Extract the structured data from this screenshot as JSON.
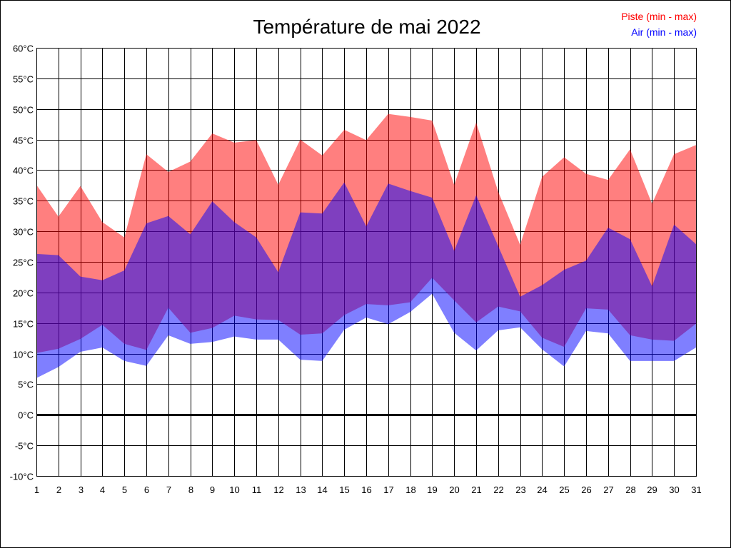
{
  "chart_data": {
    "type": "area",
    "title": "Température de mai 2022",
    "xlabel": "",
    "ylabel": "",
    "x": [
      1,
      2,
      3,
      4,
      5,
      6,
      7,
      8,
      9,
      10,
      11,
      12,
      13,
      14,
      15,
      16,
      17,
      18,
      19,
      20,
      21,
      22,
      23,
      24,
      25,
      26,
      27,
      28,
      29,
      30,
      31
    ],
    "xlim": [
      1,
      31
    ],
    "ylim": [
      -10,
      60
    ],
    "y_ticks": [
      -10,
      -5,
      0,
      5,
      10,
      15,
      20,
      25,
      30,
      35,
      40,
      45,
      50,
      55,
      60
    ],
    "y_tick_unit": "°C",
    "grid": true,
    "legend_position": "top-right",
    "series": [
      {
        "name": "Piste (min - max)",
        "color": "#ff0000",
        "min": [
          10.1,
          10.8,
          12.4,
          14.7,
          11.6,
          10.6,
          17.5,
          13.4,
          14.2,
          16.2,
          15.6,
          15.5,
          13.1,
          13.3,
          16.3,
          18.1,
          17.9,
          18.4,
          22.4,
          18.7,
          15.1,
          17.7,
          16.9,
          12.6,
          11.1,
          17.4,
          17.2,
          13.0,
          12.3,
          12.1,
          14.9
        ],
        "max": [
          37.6,
          32.4,
          37.4,
          31.5,
          29.0,
          42.6,
          39.7,
          41.4,
          46.0,
          44.5,
          44.9,
          37.6,
          45.0,
          42.4,
          46.6,
          44.9,
          49.2,
          48.7,
          48.1,
          37.6,
          47.8,
          36.5,
          27.8,
          38.9,
          42.1,
          39.4,
          38.4,
          43.4,
          34.5,
          42.6,
          44.1
        ]
      },
      {
        "name": "Air (min - max)",
        "color": "#0000ff",
        "min": [
          6.0,
          7.8,
          10.3,
          11.0,
          8.8,
          8.0,
          13.0,
          11.6,
          11.9,
          12.8,
          12.3,
          12.3,
          9.0,
          8.8,
          13.9,
          15.9,
          14.8,
          16.8,
          19.8,
          13.4,
          10.5,
          13.8,
          14.3,
          10.7,
          7.9,
          13.7,
          13.3,
          8.8,
          8.8,
          8.8,
          11.0
        ],
        "max": [
          26.3,
          26.1,
          22.6,
          22.0,
          23.6,
          31.3,
          32.5,
          29.5,
          34.9,
          31.5,
          29.0,
          23.3,
          33.1,
          32.9,
          38.0,
          30.8,
          37.8,
          36.6,
          35.5,
          26.8,
          35.9,
          27.6,
          19.3,
          21.2,
          23.7,
          25.2,
          30.6,
          28.7,
          21.0,
          31.1,
          27.9
        ]
      }
    ]
  }
}
